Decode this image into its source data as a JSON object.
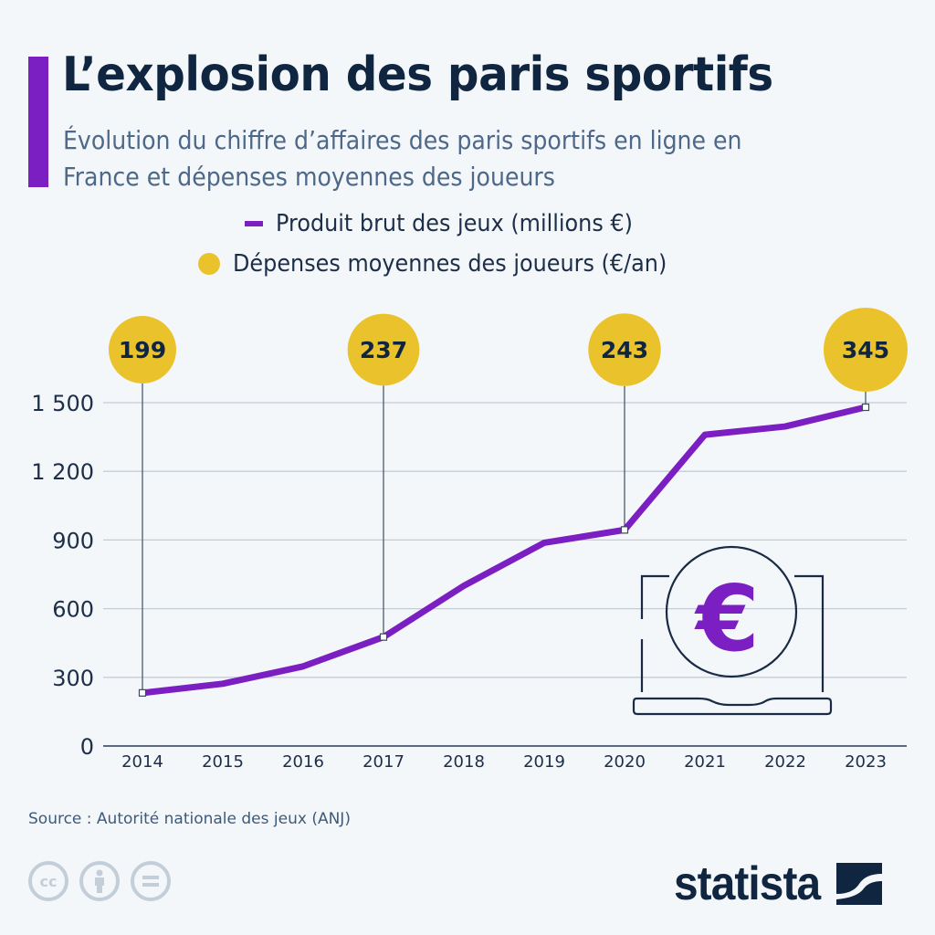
{
  "header": {
    "title": "L’explosion des paris sportifs",
    "subtitle": "Évolution du chiffre d’affaires des paris sportifs en ligne en France et dépenses moyennes des joueurs"
  },
  "legend": {
    "items": [
      {
        "label": "Produit brut des jeux (millions €)",
        "symbol": "line",
        "color": "#7b1fc2"
      },
      {
        "label": "Dépenses moyennes des joueurs (€/an)",
        "symbol": "dot",
        "color": "#eac22c"
      }
    ]
  },
  "chart_data": {
    "type": "line",
    "title": "L’explosion des paris sportifs",
    "subtitle": "Évolution du chiffre d’affaires des paris sportifs en ligne en France et dépenses moyennes des joueurs",
    "xlabel": "",
    "ylabel": "",
    "x": [
      "2014",
      "2015",
      "2016",
      "2017",
      "2018",
      "2019",
      "2020",
      "2021",
      "2022",
      "2023"
    ],
    "ylim": [
      0,
      1500
    ],
    "yticks": [
      0,
      300,
      600,
      900,
      1200,
      1500
    ],
    "ytick_labels": [
      "0",
      "300",
      "600",
      "900",
      "1 200",
      "1 500"
    ],
    "grid": true,
    "legend_position": "top-center",
    "series": [
      {
        "name": "Produit brut des jeux (millions €)",
        "color": "#7b1fc2",
        "values": [
          232,
          272,
          348,
          476,
          700,
          888,
          944,
          1360,
          1396,
          1480
        ]
      }
    ],
    "annotations": {
      "name": "Dépenses moyennes des joueurs (€/an)",
      "color": "#eac22c",
      "points": [
        {
          "x": "2014",
          "value": 199,
          "label": "199"
        },
        {
          "x": "2017",
          "value": 237,
          "label": "237"
        },
        {
          "x": "2020",
          "value": 243,
          "label": "243"
        },
        {
          "x": "2023",
          "value": 345,
          "label": "345"
        }
      ]
    }
  },
  "footer": {
    "source": "Source : Autorité nationale des jeux (ANJ)",
    "license_icons": [
      {
        "name": "cc-icon",
        "glyph": "cc"
      },
      {
        "name": "attribution-icon",
        "glyph": "person"
      },
      {
        "name": "no-derivatives-icon",
        "glyph": "="
      }
    ],
    "logo": "statista"
  }
}
